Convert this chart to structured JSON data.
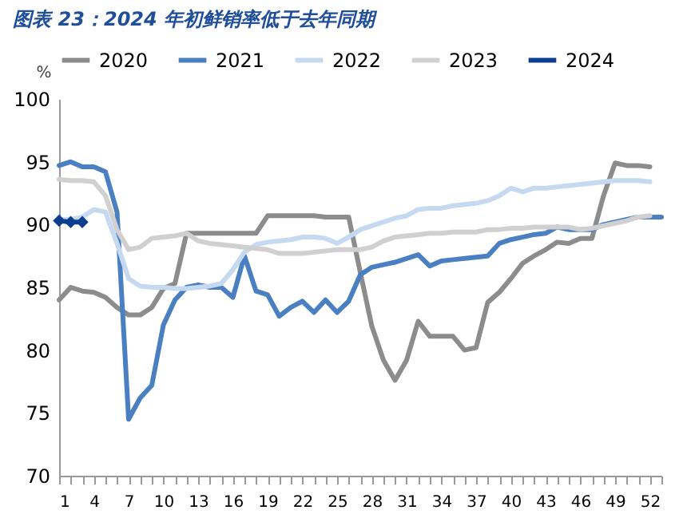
{
  "chart_data": {
    "type": "line",
    "title": "图表 23：2024 年初鲜销率低于去年同期",
    "ylabel": "%",
    "x": [
      1,
      2,
      3,
      4,
      5,
      6,
      7,
      8,
      9,
      10,
      11,
      12,
      13,
      14,
      15,
      16,
      17,
      18,
      19,
      20,
      21,
      22,
      23,
      24,
      25,
      26,
      27,
      28,
      29,
      30,
      31,
      32,
      33,
      34,
      35,
      36,
      37,
      38,
      39,
      40,
      41,
      42,
      43,
      44,
      45,
      46,
      47,
      48,
      49,
      50,
      51,
      52,
      53
    ],
    "xlim": [
      1,
      53
    ],
    "xticks": [
      1,
      {
        "value": 2,
        "label": null
      },
      {
        "value": 3,
        "label": null
      },
      4,
      {
        "value": 5,
        "label": null
      },
      {
        "value": 6,
        "label": null
      },
      7,
      {
        "value": 8,
        "label": null
      },
      {
        "value": 9,
        "label": null
      },
      10,
      {
        "value": 11,
        "label": null
      },
      {
        "value": 12,
        "label": null
      },
      13,
      {
        "value": 14,
        "label": null
      },
      {
        "value": 15,
        "label": null
      },
      16,
      {
        "value": 17,
        "label": null
      },
      {
        "value": 18,
        "label": null
      },
      19,
      {
        "value": 20,
        "label": null
      },
      {
        "value": 21,
        "label": null
      },
      22,
      {
        "value": 23,
        "label": null
      },
      {
        "value": 24,
        "label": null
      },
      25,
      {
        "value": 26,
        "label": null
      },
      {
        "value": 27,
        "label": null
      },
      28,
      {
        "value": 29,
        "label": null
      },
      {
        "value": 30,
        "label": null
      },
      31,
      {
        "value": 32,
        "label": null
      },
      {
        "value": 33,
        "label": null
      },
      34,
      {
        "value": 35,
        "label": null
      },
      {
        "value": 36,
        "label": null
      },
      37,
      {
        "value": 38,
        "label": null
      },
      {
        "value": 39,
        "label": null
      },
      40,
      {
        "value": 41,
        "label": null
      },
      {
        "value": 42,
        "label": null
      },
      43,
      {
        "value": 44,
        "label": null
      },
      {
        "value": 45,
        "label": null
      },
      46,
      {
        "value": 47,
        "label": null
      },
      {
        "value": 48,
        "label": null
      },
      49,
      {
        "value": 50,
        "label": null
      },
      {
        "value": 51,
        "label": null
      },
      52,
      {
        "value": 53,
        "label": null
      }
    ],
    "ylim": [
      70,
      100
    ],
    "yticks": [
      70,
      75,
      80,
      85,
      90,
      95,
      100
    ],
    "grid": false,
    "legend": "top",
    "line_style": "solid",
    "series": [
      {
        "name": "2020",
        "color": "#8c8c8c",
        "marker": "none",
        "values": [
          84.0,
          85.0,
          84.7,
          84.6,
          84.2,
          83.4,
          82.8,
          82.8,
          83.4,
          84.9,
          85.3,
          89.3,
          89.3,
          89.3,
          89.3,
          89.3,
          89.3,
          89.3,
          90.7,
          90.7,
          90.7,
          90.7,
          90.7,
          90.6,
          90.6,
          90.6,
          86.2,
          81.9,
          79.2,
          77.6,
          79.2,
          82.3,
          81.1,
          81.1,
          81.1,
          80.0,
          80.2,
          83.8,
          84.6,
          85.7,
          86.9,
          87.5,
          88.0,
          88.6,
          88.5,
          88.9,
          88.9,
          92.3,
          94.9,
          94.7,
          94.7,
          94.6,
          null
        ]
      },
      {
        "name": "2021",
        "color": "#4a7fc1",
        "marker": "none",
        "values": [
          94.7,
          95.0,
          94.6,
          94.6,
          94.2,
          91.0,
          74.5,
          76.2,
          77.2,
          82.0,
          84.0,
          85.0,
          85.2,
          85.0,
          85.0,
          84.2,
          87.5,
          84.7,
          84.4,
          82.7,
          83.4,
          83.9,
          83.0,
          84.0,
          83.0,
          83.9,
          86.0,
          86.6,
          86.8,
          87.0,
          87.3,
          87.6,
          86.7,
          87.1,
          87.2,
          87.3,
          87.4,
          87.5,
          88.5,
          88.8,
          89.0,
          89.2,
          89.3,
          89.8,
          89.6,
          89.6,
          89.6,
          90.0,
          90.2,
          90.4,
          90.6,
          90.6,
          90.6
        ]
      },
      {
        "name": "2022",
        "color": "#c5d9f1",
        "marker": "none",
        "values": [
          90.4,
          90.4,
          90.6,
          91.2,
          91.0,
          88.5,
          85.7,
          85.1,
          85.0,
          85.0,
          84.9,
          84.9,
          85.0,
          85.1,
          85.3,
          86.4,
          87.8,
          88.4,
          88.6,
          88.7,
          88.8,
          89.0,
          89.0,
          88.9,
          88.5,
          89.0,
          89.6,
          89.9,
          90.2,
          90.5,
          90.7,
          91.2,
          91.3,
          91.3,
          91.5,
          91.6,
          91.7,
          91.9,
          92.3,
          92.9,
          92.6,
          92.9,
          92.9,
          93.0,
          93.1,
          93.2,
          93.3,
          93.4,
          93.5,
          93.5,
          93.5,
          93.4,
          null
        ]
      },
      {
        "name": "2023",
        "color": "#d0d0d0",
        "marker": "none",
        "values": [
          93.6,
          93.5,
          93.5,
          93.4,
          92.3,
          89.6,
          88.0,
          88.2,
          88.9,
          89.0,
          89.1,
          89.3,
          88.7,
          88.5,
          88.4,
          88.3,
          88.2,
          88.1,
          88.0,
          87.7,
          87.7,
          87.7,
          87.8,
          87.9,
          88.0,
          88.0,
          88.0,
          88.2,
          88.7,
          89.0,
          89.1,
          89.2,
          89.3,
          89.3,
          89.4,
          89.4,
          89.4,
          89.6,
          89.6,
          89.7,
          89.7,
          89.8,
          89.8,
          89.8,
          89.8,
          89.6,
          89.7,
          89.9,
          90.1,
          90.3,
          90.6,
          90.7,
          null
        ]
      },
      {
        "name": "2024",
        "color": "#0d3d91",
        "marker": "diamond",
        "values": [
          90.3,
          90.2,
          90.2,
          null,
          null,
          null,
          null,
          null,
          null,
          null,
          null,
          null,
          null,
          null,
          null,
          null,
          null,
          null,
          null,
          null,
          null,
          null,
          null,
          null,
          null,
          null,
          null,
          null,
          null,
          null,
          null,
          null,
          null,
          null,
          null,
          null,
          null,
          null,
          null,
          null,
          null,
          null,
          null,
          null,
          null,
          null,
          null,
          null,
          null,
          null,
          null,
          null,
          null
        ]
      }
    ]
  }
}
